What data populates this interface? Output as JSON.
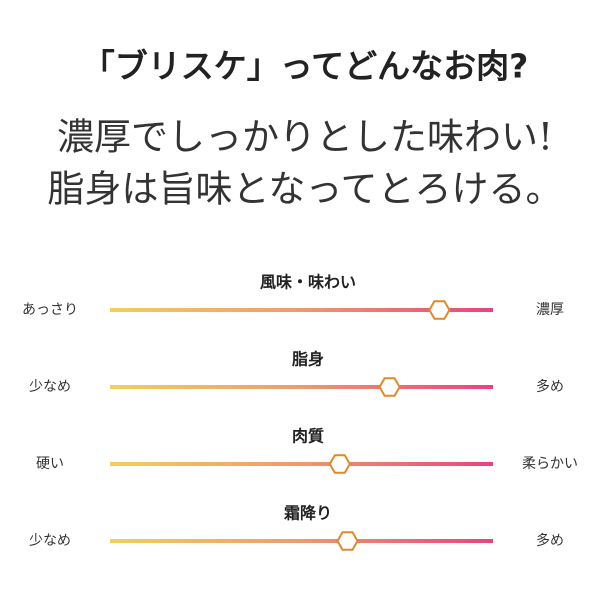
{
  "header": {
    "title": "「ブリスケ」ってどんなお肉?",
    "lines": [
      "濃厚でしっかりとした味わい!",
      "脂身は旨味となってとろける。"
    ]
  },
  "sliders": [
    {
      "label": "風味・味わい",
      "left": "あっさり",
      "right": "濃厚",
      "value": 86
    },
    {
      "label": "脂身",
      "left": "少なめ",
      "right": "多め",
      "value": 73
    },
    {
      "label": "肉質",
      "left": "硬い",
      "right": "柔らかい",
      "value": 60
    },
    {
      "label": "霜降り",
      "left": "少なめ",
      "right": "多め",
      "value": 62
    }
  ]
}
